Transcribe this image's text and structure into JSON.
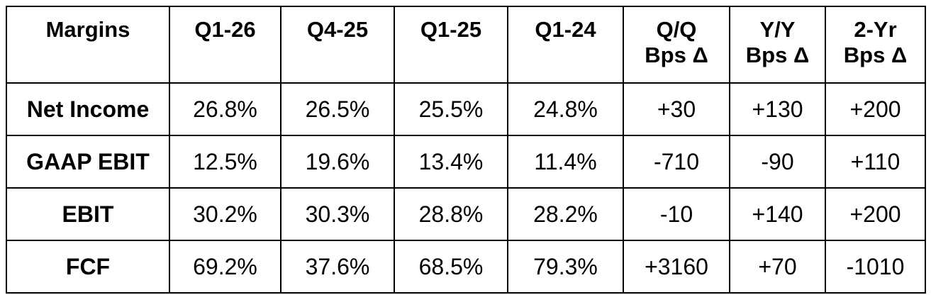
{
  "table": {
    "header": [
      "Margins",
      "Q1-26",
      "Q4-25",
      "Q1-25",
      "Q1-24",
      "Q/Q\nBps Δ",
      "Y/Y\nBps Δ",
      "2-Yr\nBps Δ"
    ],
    "rows": [
      [
        "Net Income",
        "26.8%",
        "26.5%",
        "25.5%",
        "24.8%",
        "+30",
        "+130",
        "+200"
      ],
      [
        "GAAP EBIT",
        "12.5%",
        "19.6%",
        "13.4%",
        "11.4%",
        "-710",
        "-90",
        "+110"
      ],
      [
        "EBIT",
        "30.2%",
        "30.3%",
        "28.8%",
        "28.2%",
        "-10",
        "+140",
        "+200"
      ],
      [
        "FCF",
        "69.2%",
        "37.6%",
        "68.5%",
        "79.3%",
        "+3160",
        "+70",
        "-1010"
      ]
    ]
  }
}
